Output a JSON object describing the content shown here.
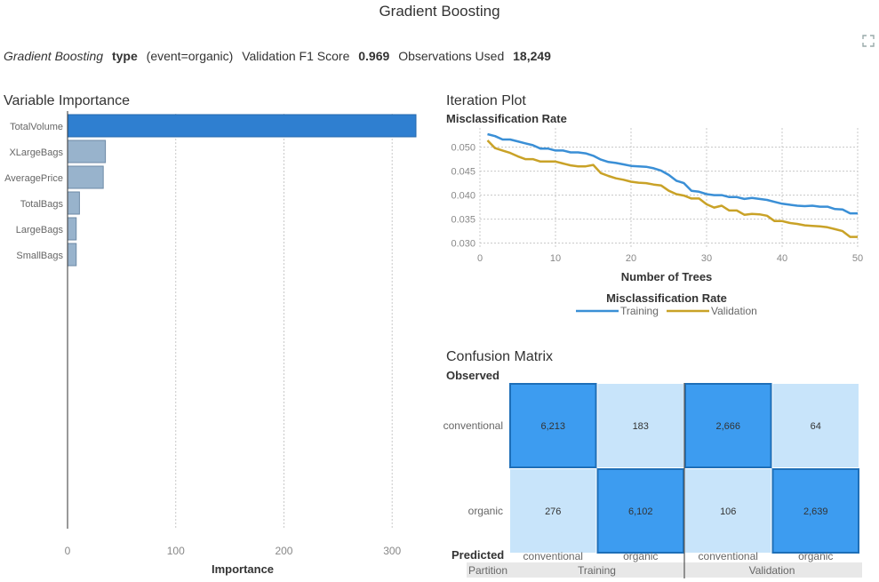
{
  "title": "Gradient Boosting",
  "summary": {
    "model": "Gradient Boosting",
    "target_label": "type",
    "event": "(event=organic)",
    "metric_label": "Validation F1 Score",
    "metric_value": "0.969",
    "obs_label": "Observations Used",
    "obs_value": "18,249"
  },
  "icons": {
    "maximize": "expand-icon"
  },
  "colors": {
    "importance_top": "#2f7fd0",
    "importance_other": "#98b3cc",
    "training": "#3a8fd6",
    "validation": "#c9a227",
    "cm_dark": "#3d9cf0",
    "cm_light": "#c8e4fa"
  },
  "chart_data": [
    {
      "type": "bar",
      "title": "Variable Importance",
      "orientation": "horizontal",
      "categories": [
        "TotalVolume",
        "XLargeBags",
        "AveragePrice",
        "TotalBags",
        "LargeBags",
        "SmallBags"
      ],
      "values": [
        322,
        35,
        33,
        11,
        8,
        8
      ],
      "xlabel": "Importance",
      "xlim": [
        0,
        322
      ],
      "xticks": [
        0,
        100,
        200,
        300
      ],
      "grid": true
    },
    {
      "type": "line",
      "title": "Iteration Plot",
      "subtitle": "Misclassification Rate",
      "xlabel": "Number of Trees",
      "xlim": [
        0,
        50
      ],
      "ylim": [
        0.029,
        0.054
      ],
      "xticks": [
        0,
        10,
        20,
        30,
        40,
        50
      ],
      "yticks": [
        0.03,
        0.035,
        0.04,
        0.045,
        0.05
      ],
      "ytick_labels": [
        "0.030",
        "0.035",
        "0.040",
        "0.045",
        "0.050"
      ],
      "legend_title": "Misclassification Rate",
      "legend_position": "bottom",
      "grid": true,
      "x": [
        1,
        2,
        3,
        4,
        5,
        6,
        7,
        8,
        9,
        10,
        11,
        12,
        13,
        14,
        15,
        16,
        17,
        18,
        19,
        20,
        21,
        22,
        23,
        24,
        25,
        26,
        27,
        28,
        29,
        30,
        31,
        32,
        33,
        34,
        35,
        36,
        37,
        38,
        39,
        40,
        41,
        42,
        43,
        44,
        45,
        46,
        47,
        48,
        49,
        50
      ],
      "series": [
        {
          "name": "Training",
          "values": [
            0.0527,
            0.0523,
            0.0516,
            0.0516,
            0.0512,
            0.0508,
            0.0504,
            0.0497,
            0.0497,
            0.0493,
            0.0493,
            0.0489,
            0.0489,
            0.0487,
            0.0482,
            0.0474,
            0.0469,
            0.0467,
            0.0464,
            0.0461,
            0.046,
            0.0459,
            0.0456,
            0.0451,
            0.0442,
            0.043,
            0.0425,
            0.0409,
            0.0407,
            0.0402,
            0.04,
            0.04,
            0.0396,
            0.0396,
            0.0392,
            0.0394,
            0.0392,
            0.039,
            0.0386,
            0.0382,
            0.038,
            0.0378,
            0.0377,
            0.0378,
            0.0376,
            0.0376,
            0.0371,
            0.037,
            0.0362,
            0.0362
          ]
        },
        {
          "name": "Validation",
          "values": [
            0.0514,
            0.0498,
            0.0493,
            0.0488,
            0.0481,
            0.0475,
            0.0475,
            0.047,
            0.047,
            0.047,
            0.0466,
            0.0462,
            0.046,
            0.046,
            0.0463,
            0.0446,
            0.044,
            0.0435,
            0.0432,
            0.0428,
            0.0426,
            0.0425,
            0.0422,
            0.042,
            0.0409,
            0.0402,
            0.0399,
            0.0393,
            0.0393,
            0.0381,
            0.0374,
            0.0378,
            0.0368,
            0.0368,
            0.0359,
            0.0361,
            0.036,
            0.0357,
            0.0346,
            0.0346,
            0.0342,
            0.034,
            0.0337,
            0.0336,
            0.0335,
            0.0333,
            0.0329,
            0.0325,
            0.0313,
            0.0313
          ]
        }
      ]
    },
    {
      "type": "heatmap",
      "title": "Confusion Matrix",
      "observed_label": "Observed",
      "predicted_label": "Predicted",
      "partition_label": "Partition",
      "rows": [
        "conventional",
        "organic"
      ],
      "columns": [
        "conventional",
        "organic",
        "conventional",
        "organic"
      ],
      "partitions": [
        "Training",
        "Validation"
      ],
      "cells": [
        [
          "6,213",
          "183",
          "2,666",
          "64"
        ],
        [
          "276",
          "6,102",
          "106",
          "2,639"
        ]
      ],
      "diagonal_highlight": [
        [
          true,
          false,
          true,
          false
        ],
        [
          false,
          true,
          false,
          true
        ]
      ]
    }
  ]
}
